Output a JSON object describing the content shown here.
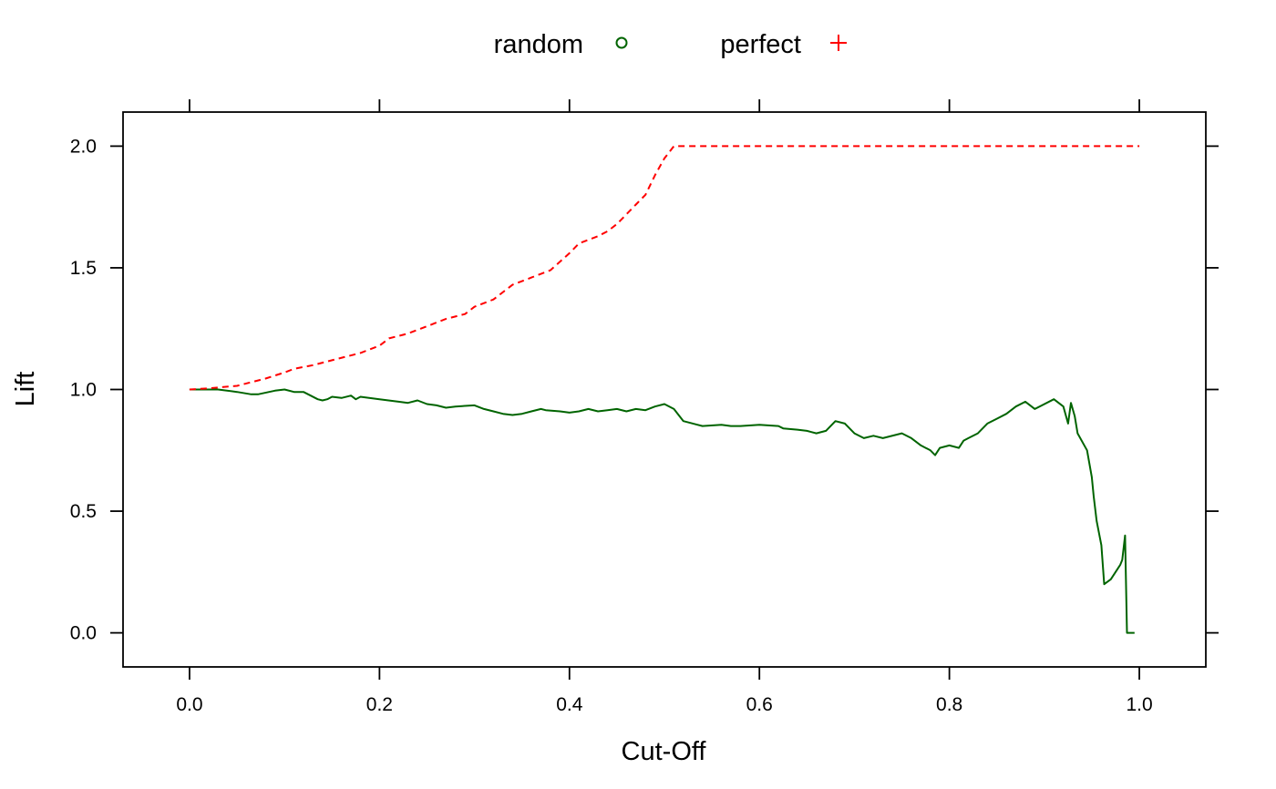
{
  "chart_data": {
    "type": "line",
    "xlabel": "Cut-Off",
    "ylabel": "Lift",
    "xlim": [
      -0.07,
      1.07
    ],
    "ylim": [
      -0.14,
      2.14
    ],
    "x_ticks": [
      "0.0",
      "0.2",
      "0.4",
      "0.6",
      "0.8",
      "1.0"
    ],
    "x_tick_values": [
      0.0,
      0.2,
      0.4,
      0.6,
      0.8,
      1.0
    ],
    "y_ticks": [
      "0.0",
      "0.5",
      "1.0",
      "1.5",
      "2.0"
    ],
    "y_tick_values": [
      0.0,
      0.5,
      1.0,
      1.5,
      2.0
    ],
    "grid": false,
    "legend_position": "top",
    "series": [
      {
        "name": "random",
        "marker": "circle",
        "line_style": "solid",
        "color": "#006400",
        "x": [
          0.0,
          0.03,
          0.05,
          0.065,
          0.068,
          0.072,
          0.09,
          0.1,
          0.11,
          0.12,
          0.135,
          0.14,
          0.145,
          0.15,
          0.16,
          0.17,
          0.175,
          0.18,
          0.2,
          0.22,
          0.23,
          0.24,
          0.25,
          0.26,
          0.27,
          0.28,
          0.3,
          0.31,
          0.32,
          0.33,
          0.34,
          0.35,
          0.36,
          0.37,
          0.375,
          0.39,
          0.4,
          0.41,
          0.42,
          0.43,
          0.44,
          0.45,
          0.46,
          0.47,
          0.48,
          0.49,
          0.5,
          0.51,
          0.52,
          0.54,
          0.56,
          0.57,
          0.58,
          0.6,
          0.62,
          0.625,
          0.64,
          0.65,
          0.66,
          0.67,
          0.68,
          0.69,
          0.7,
          0.71,
          0.72,
          0.73,
          0.75,
          0.76,
          0.77,
          0.78,
          0.785,
          0.79,
          0.8,
          0.81,
          0.815,
          0.82,
          0.83,
          0.84,
          0.85,
          0.86,
          0.87,
          0.88,
          0.89,
          0.91,
          0.92,
          0.925,
          0.928,
          0.932,
          0.935,
          0.945,
          0.95,
          0.952,
          0.955,
          0.96,
          0.963,
          0.97,
          0.975,
          0.98,
          0.982,
          0.985,
          0.987,
          0.99,
          0.995
        ],
        "values": [
          1.0,
          1.0,
          0.99,
          0.98,
          0.98,
          0.98,
          0.995,
          1.0,
          0.99,
          0.99,
          0.96,
          0.955,
          0.96,
          0.97,
          0.965,
          0.975,
          0.96,
          0.97,
          0.96,
          0.95,
          0.945,
          0.955,
          0.94,
          0.935,
          0.925,
          0.93,
          0.935,
          0.92,
          0.91,
          0.9,
          0.895,
          0.9,
          0.91,
          0.92,
          0.915,
          0.91,
          0.905,
          0.91,
          0.92,
          0.91,
          0.915,
          0.92,
          0.91,
          0.92,
          0.915,
          0.93,
          0.94,
          0.92,
          0.87,
          0.85,
          0.855,
          0.85,
          0.85,
          0.855,
          0.85,
          0.84,
          0.835,
          0.83,
          0.82,
          0.83,
          0.87,
          0.86,
          0.82,
          0.8,
          0.81,
          0.8,
          0.82,
          0.8,
          0.77,
          0.75,
          0.73,
          0.76,
          0.77,
          0.76,
          0.79,
          0.8,
          0.82,
          0.86,
          0.88,
          0.9,
          0.93,
          0.95,
          0.92,
          0.96,
          0.93,
          0.86,
          0.945,
          0.89,
          0.82,
          0.75,
          0.64,
          0.56,
          0.46,
          0.36,
          0.2,
          0.22,
          0.25,
          0.28,
          0.3,
          0.4,
          0.0,
          0.0,
          0.0
        ]
      },
      {
        "name": "perfect",
        "marker": "plus",
        "line_style": "dashed",
        "color": "#ff0000",
        "x": [
          0.0,
          0.02,
          0.05,
          0.06,
          0.08,
          0.1,
          0.11,
          0.13,
          0.15,
          0.18,
          0.2,
          0.21,
          0.23,
          0.25,
          0.27,
          0.29,
          0.3,
          0.32,
          0.34,
          0.36,
          0.38,
          0.4,
          0.41,
          0.43,
          0.44,
          0.45,
          0.46,
          0.47,
          0.48,
          0.49,
          0.5,
          0.51,
          0.6,
          0.8,
          1.0
        ],
        "values": [
          1.0,
          1.005,
          1.015,
          1.025,
          1.045,
          1.07,
          1.085,
          1.1,
          1.12,
          1.15,
          1.18,
          1.21,
          1.23,
          1.26,
          1.29,
          1.31,
          1.34,
          1.37,
          1.43,
          1.46,
          1.49,
          1.56,
          1.6,
          1.63,
          1.65,
          1.68,
          1.72,
          1.76,
          1.8,
          1.88,
          1.95,
          2.0,
          2.0,
          2.0,
          2.0
        ]
      }
    ]
  }
}
